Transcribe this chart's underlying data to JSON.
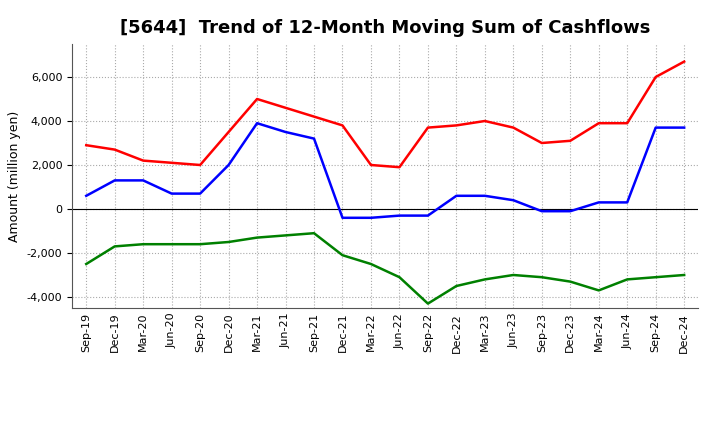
{
  "title": "[5644]  Trend of 12-Month Moving Sum of Cashflows",
  "ylabel": "Amount (million yen)",
  "xlabels": [
    "Sep-19",
    "Dec-19",
    "Mar-20",
    "Jun-20",
    "Sep-20",
    "Dec-20",
    "Mar-21",
    "Jun-21",
    "Sep-21",
    "Dec-21",
    "Mar-22",
    "Jun-22",
    "Sep-22",
    "Dec-22",
    "Mar-23",
    "Jun-23",
    "Sep-23",
    "Dec-23",
    "Mar-24",
    "Jun-24",
    "Sep-24",
    "Dec-24"
  ],
  "operating": [
    2900,
    2700,
    2200,
    2100,
    2000,
    3500,
    5000,
    4600,
    4200,
    3800,
    2000,
    1900,
    3700,
    3800,
    4000,
    3700,
    3000,
    3100,
    3900,
    3900,
    6000,
    6700
  ],
  "investing": [
    -2500,
    -1700,
    -1600,
    -1600,
    -1600,
    -1500,
    -1300,
    -1200,
    -1100,
    -2100,
    -2500,
    -3100,
    -4300,
    -3500,
    -3200,
    -3000,
    -3100,
    -3300,
    -3700,
    -3200,
    -3100,
    -3000
  ],
  "free": [
    600,
    1300,
    1300,
    700,
    700,
    2000,
    3900,
    3500,
    3200,
    -400,
    -400,
    -300,
    -300,
    600,
    600,
    400,
    -100,
    -100,
    300,
    300,
    3700,
    3700
  ],
  "ylim": [
    -4500,
    7500
  ],
  "yticks": [
    -4000,
    -2000,
    0,
    2000,
    4000,
    6000
  ],
  "operating_color": "#ff0000",
  "investing_color": "#008000",
  "free_color": "#0000ff",
  "line_width": 1.8,
  "bg_color": "#ffffff",
  "plot_bg_color": "#ffffff",
  "grid_color": "#aaaaaa",
  "title_fontsize": 13,
  "ylabel_fontsize": 9,
  "tick_fontsize": 8,
  "legend_fontsize": 9
}
